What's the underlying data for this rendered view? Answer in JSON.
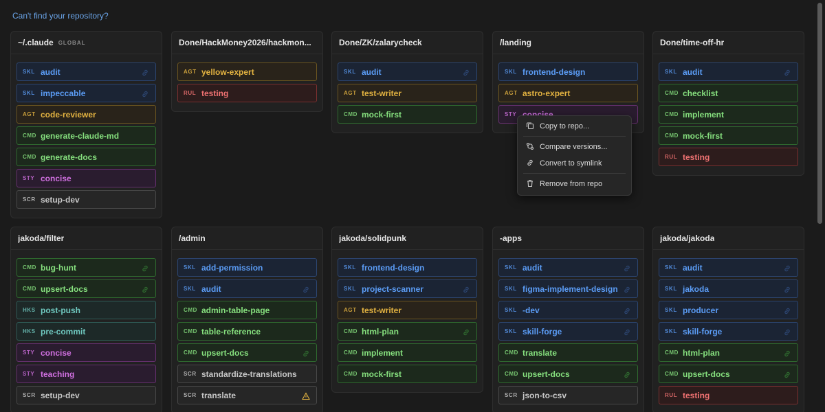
{
  "help_link": "Can't find your repository?",
  "cards": [
    {
      "title": "~/.claude",
      "badge": "GLOBAL",
      "items": [
        {
          "tag": "SKL",
          "name": "audit",
          "link": true
        },
        {
          "tag": "SKL",
          "name": "impeccable",
          "link": true
        },
        {
          "tag": "AGT",
          "name": "code-reviewer"
        },
        {
          "tag": "CMD",
          "name": "generate-claude-md"
        },
        {
          "tag": "CMD",
          "name": "generate-docs"
        },
        {
          "tag": "STY",
          "name": "concise"
        },
        {
          "tag": "SCR",
          "name": "setup-dev"
        }
      ]
    },
    {
      "title": "Done/HackMoney2026/hackmon...",
      "items": [
        {
          "tag": "AGT",
          "name": "yellow-expert"
        },
        {
          "tag": "RUL",
          "name": "testing"
        }
      ]
    },
    {
      "title": "Done/ZK/zalarycheck",
      "items": [
        {
          "tag": "SKL",
          "name": "audit",
          "link": true
        },
        {
          "tag": "AGT",
          "name": "test-writer"
        },
        {
          "tag": "CMD",
          "name": "mock-first"
        }
      ]
    },
    {
      "title": "/landing",
      "items": [
        {
          "tag": "SKL",
          "name": "frontend-design"
        },
        {
          "tag": "AGT",
          "name": "astro-expert"
        },
        {
          "tag": "STY",
          "name": "concise"
        }
      ]
    },
    {
      "title": "Done/time-off-hr",
      "items": [
        {
          "tag": "SKL",
          "name": "audit",
          "link": true
        },
        {
          "tag": "CMD",
          "name": "checklist"
        },
        {
          "tag": "CMD",
          "name": "implement"
        },
        {
          "tag": "CMD",
          "name": "mock-first"
        },
        {
          "tag": "RUL",
          "name": "testing"
        }
      ]
    },
    {
      "title": "jakoda/filter",
      "items": [
        {
          "tag": "CMD",
          "name": "bug-hunt",
          "link": true
        },
        {
          "tag": "CMD",
          "name": "upsert-docs",
          "link": true
        },
        {
          "tag": "HKS",
          "name": "post-push"
        },
        {
          "tag": "HKS",
          "name": "pre-commit"
        },
        {
          "tag": "STY",
          "name": "concise"
        },
        {
          "tag": "STY",
          "name": "teaching"
        },
        {
          "tag": "SCR",
          "name": "setup-dev"
        }
      ]
    },
    {
      "title": "/admin",
      "items": [
        {
          "tag": "SKL",
          "name": "add-permission"
        },
        {
          "tag": "SKL",
          "name": "audit",
          "link": true
        },
        {
          "tag": "CMD",
          "name": "admin-table-page"
        },
        {
          "tag": "CMD",
          "name": "table-reference"
        },
        {
          "tag": "CMD",
          "name": "upsert-docs",
          "link": true
        },
        {
          "tag": "SCR",
          "name": "standardize-translations"
        },
        {
          "tag": "SCR",
          "name": "translate",
          "warning": true
        }
      ]
    },
    {
      "title": "jakoda/solidpunk",
      "items": [
        {
          "tag": "SKL",
          "name": "frontend-design"
        },
        {
          "tag": "SKL",
          "name": "project-scanner",
          "link": true
        },
        {
          "tag": "AGT",
          "name": "test-writer"
        },
        {
          "tag": "CMD",
          "name": "html-plan",
          "link": true
        },
        {
          "tag": "CMD",
          "name": "implement"
        },
        {
          "tag": "CMD",
          "name": "mock-first"
        }
      ]
    },
    {
      "title": "-apps",
      "items": [
        {
          "tag": "SKL",
          "name": "audit",
          "link": true
        },
        {
          "tag": "SKL",
          "name": "figma-implement-design",
          "link": true
        },
        {
          "tag": "SKL",
          "name": "-dev",
          "link": true
        },
        {
          "tag": "SKL",
          "name": "skill-forge",
          "link": true
        },
        {
          "tag": "CMD",
          "name": "translate"
        },
        {
          "tag": "CMD",
          "name": "upsert-docs",
          "link": true
        },
        {
          "tag": "SCR",
          "name": "json-to-csv"
        }
      ]
    },
    {
      "title": "jakoda/jakoda",
      "items": [
        {
          "tag": "SKL",
          "name": "audit",
          "link": true
        },
        {
          "tag": "SKL",
          "name": "jakoda",
          "link": true
        },
        {
          "tag": "SKL",
          "name": "producer",
          "link": true
        },
        {
          "tag": "SKL",
          "name": "skill-forge",
          "link": true
        },
        {
          "tag": "CMD",
          "name": "html-plan",
          "link": true
        },
        {
          "tag": "CMD",
          "name": "upsert-docs",
          "link": true
        },
        {
          "tag": "RUL",
          "name": "testing"
        }
      ]
    }
  ],
  "menu": [
    "Copy to repo...",
    "Compare versions...",
    "Convert to symlink",
    "Remove from repo"
  ]
}
